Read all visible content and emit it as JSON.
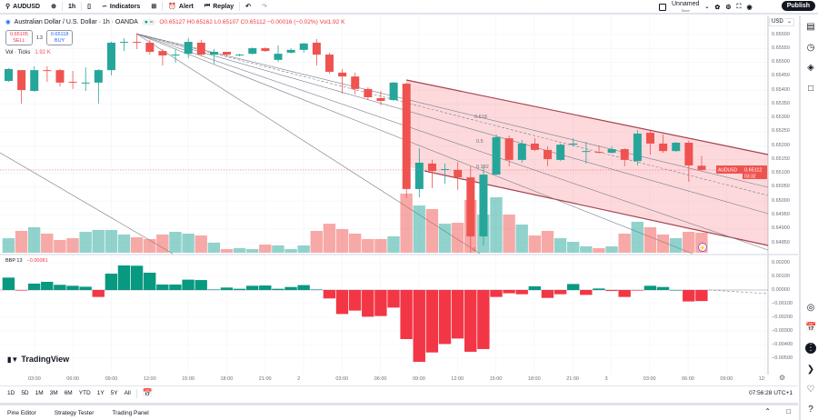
{
  "toolbar": {
    "symbol": "AUDUSD",
    "interval": "1h",
    "indicators": "Indicators",
    "alert": "Alert",
    "replay": "Replay",
    "layout_name": "Unnamed",
    "layout_status": "Save",
    "publish": "Publish"
  },
  "legend": {
    "title": "Australian Dollar / U.S. Dollar · 1h · OANDA",
    "ohlc": "O0.65127 H0.65162 L0.65107 C0.65112 −0.00016 (−0.02%) Vol1.92 K",
    "sell_price": "0.65105",
    "sell_label": "SELL",
    "spread": "1.3",
    "buy_price": "0.65118",
    "buy_label": "BUY",
    "vol_label": "Vol · Ticks",
    "vol_value": "1.92 K",
    "bbp_label": "BBP 13",
    "bbp_value": "−0.00081"
  },
  "price_axis": {
    "currency": "USD",
    "labels": [
      "0.65600",
      "0.65550",
      "0.65500",
      "0.65450",
      "0.65400",
      "0.65350",
      "0.65300",
      "0.65250",
      "0.65200",
      "0.65150",
      "0.65100",
      "0.65050",
      "0.65000",
      "0.64950",
      "0.64900",
      "0.64850"
    ],
    "last_symbol": "AUDUSD",
    "last_price": "0.65112",
    "countdown": "03:32"
  },
  "bbp_axis": {
    "labels": [
      "0.00200",
      "0.00100",
      "0.00000",
      "−0.00100",
      "−0.00200",
      "−0.00300",
      "−0.00400",
      "−0.00500"
    ]
  },
  "time_axis": [
    "03:00",
    "06:00",
    "09:00",
    "12:00",
    "15:00",
    "18:00",
    "21:00",
    "2",
    "03:00",
    "06:00",
    "09:00",
    "12:00",
    "15:00",
    "18:00",
    "21:00",
    "3",
    "03:00",
    "06:00",
    "09:00",
    "12:"
  ],
  "fib_labels": [
    "0.618",
    "0.5",
    "0.382",
    "0"
  ],
  "ranges": [
    "1D",
    "5D",
    "1M",
    "3M",
    "6M",
    "YTD",
    "1Y",
    "5Y",
    "All"
  ],
  "clock": "07:56:28 UTC+1",
  "bottom_tabs": [
    "Pine Editor",
    "Strategy Tester",
    "Trading Panel"
  ],
  "brand": "TradingView",
  "colors": {
    "up": "#26a69a",
    "down": "#ef5350",
    "bbp_up": "#089981",
    "bbp_down": "#f23645",
    "channel": "#f7525f"
  },
  "chart_data": {
    "type": "candlestick",
    "ohlc": [
      [
        0.65433,
        0.65479,
        0.6543,
        0.65476
      ],
      [
        0.65472,
        0.65472,
        0.65351,
        0.654
      ],
      [
        0.65397,
        0.65486,
        0.65394,
        0.65472
      ],
      [
        0.65472,
        0.65486,
        0.6543,
        0.65469
      ],
      [
        0.65472,
        0.65476,
        0.65413,
        0.65427
      ],
      [
        0.6543,
        0.65469,
        0.65404,
        0.65427
      ],
      [
        0.65427,
        0.65482,
        0.65397,
        0.65427
      ],
      [
        0.65427,
        0.65476,
        0.65351,
        0.65472
      ],
      [
        0.65472,
        0.65574,
        0.65453,
        0.65571
      ],
      [
        0.65571,
        0.65587,
        0.65541,
        0.65574
      ],
      [
        0.65574,
        0.65604,
        0.65548,
        0.65571
      ],
      [
        0.65571,
        0.65581,
        0.65528,
        0.65538
      ],
      [
        0.65541,
        0.65548,
        0.65489,
        0.65525
      ],
      [
        0.65525,
        0.65548,
        0.65499,
        0.65528
      ],
      [
        0.65531,
        0.65587,
        0.65515,
        0.65574
      ],
      [
        0.65571,
        0.65581,
        0.65522,
        0.65528
      ],
      [
        0.65528,
        0.65548,
        0.65495,
        0.65538
      ],
      [
        0.65538,
        0.65538,
        0.65522,
        0.65528
      ],
      [
        0.65525,
        0.65531,
        0.65522,
        0.65528
      ],
      [
        0.65531,
        0.65554,
        0.65528,
        0.65551
      ],
      [
        0.65551,
        0.65554,
        0.65538,
        0.65541
      ],
      [
        0.65509,
        0.65561,
        0.65502,
        0.65531
      ],
      [
        0.65535,
        0.65551,
        0.65531,
        0.65545
      ],
      [
        0.65545,
        0.65571,
        0.65535,
        0.65568
      ],
      [
        0.65571,
        0.65584,
        0.65489,
        0.65528
      ],
      [
        0.65528,
        0.65535,
        0.65459,
        0.65466
      ],
      [
        0.65463,
        0.65476,
        0.65387,
        0.65449
      ],
      [
        0.65449,
        0.65463,
        0.65384,
        0.65404
      ],
      [
        0.65404,
        0.6541,
        0.65364,
        0.65374
      ],
      [
        0.65371,
        0.65397,
        0.65345,
        0.65361
      ],
      [
        0.65364,
        0.6543,
        0.65361,
        0.65427
      ],
      [
        0.65423,
        0.65427,
        0.6501,
        0.65043
      ],
      [
        0.65043,
        0.6519,
        0.65013,
        0.65138
      ],
      [
        0.65135,
        0.65148,
        0.65046,
        0.65108
      ],
      [
        0.65115,
        0.65135,
        0.65062,
        0.65115
      ],
      [
        0.65112,
        0.65141,
        0.6504,
        0.65085
      ],
      [
        0.65085,
        0.65125,
        0.64813,
        0.64872
      ],
      [
        0.64872,
        0.65121,
        0.6484,
        0.65095
      ],
      [
        0.65095,
        0.6524,
        0.65095,
        0.6523
      ],
      [
        0.65226,
        0.65236,
        0.65125,
        0.65148
      ],
      [
        0.65148,
        0.6522,
        0.65138,
        0.65207
      ],
      [
        0.65207,
        0.65226,
        0.6518,
        0.65184
      ],
      [
        0.65184,
        0.65197,
        0.65125,
        0.65151
      ],
      [
        0.65148,
        0.65207,
        0.65144,
        0.65203
      ],
      [
        0.65203,
        0.65226,
        0.65197,
        0.65207
      ],
      [
        0.6518,
        0.65213,
        0.65135,
        0.6518
      ],
      [
        0.65177,
        0.652,
        0.65171,
        0.65174
      ],
      [
        0.65174,
        0.65197,
        0.65171,
        0.65187
      ],
      [
        0.65187,
        0.6519,
        0.65125,
        0.65148
      ],
      [
        0.65144,
        0.65256,
        0.65128,
        0.65243
      ],
      [
        0.65246,
        0.65253,
        0.65167,
        0.65207
      ],
      [
        0.65207,
        0.6524,
        0.65174,
        0.6518
      ],
      [
        0.6518,
        0.65213,
        0.65177,
        0.6521
      ],
      [
        0.6521,
        0.65217,
        0.65069,
        0.65128
      ],
      [
        0.65127,
        0.65162,
        0.65107,
        0.65112
      ]
    ],
    "volume_k": [
      1.39,
      2.09,
      2.44,
      1.83,
      1.22,
      1.39,
      2.0,
      2.18,
      2.18,
      1.74,
      1.48,
      1.31,
      1.74,
      2.0,
      1.83,
      1.65,
      0.96,
      0.35,
      0.44,
      0.35,
      0.78,
      0.7,
      0.35,
      0.7,
      2.09,
      2.78,
      2.26,
      1.83,
      1.31,
      1.31,
      1.57,
      5.66,
      4.52,
      4.18,
      2.78,
      2.87,
      5.05,
      3.65,
      5.31,
      3.65,
      2.7,
      1.65,
      2.09,
      1.39,
      1.04,
      0.61,
      0.44,
      0.61,
      1.83,
      2.96,
      2.44,
      1.74,
      1.39,
      2.0,
      1.92
    ],
    "bbp": [
      0.00091,
      -2e-05,
      0.00047,
      0.0006,
      0.00038,
      0.00031,
      0.00024,
      -0.00051,
      0.0012,
      0.0018,
      0.00178,
      0.00127,
      0.0004,
      0.0004,
      0.00076,
      0.00073,
      4e-05,
      0.00018,
      9e-05,
      0.00031,
      0.00033,
      9e-05,
      0.00022,
      0.00036,
      4e-05,
      -0.00062,
      -0.00176,
      -0.00151,
      -0.00196,
      -0.00191,
      -0.00129,
      -0.0036,
      -0.00527,
      -0.00458,
      -0.00396,
      -0.00356,
      -0.00453,
      -0.00433,
      -0.00051,
      -0.00024,
      -0.00031,
      0.00027,
      -0.00058,
      -0.00031,
      0.00044,
      -0.00036,
      0.00011,
      -7e-05,
      -0.00051,
      -2e-05,
      0.00031,
      0.00022,
      0.0,
      -0.00084,
      -0.00081
    ],
    "price_range": [
      0.64813,
      0.6562
    ],
    "bbp_range": [
      -0.0055,
      0.0025
    ]
  }
}
